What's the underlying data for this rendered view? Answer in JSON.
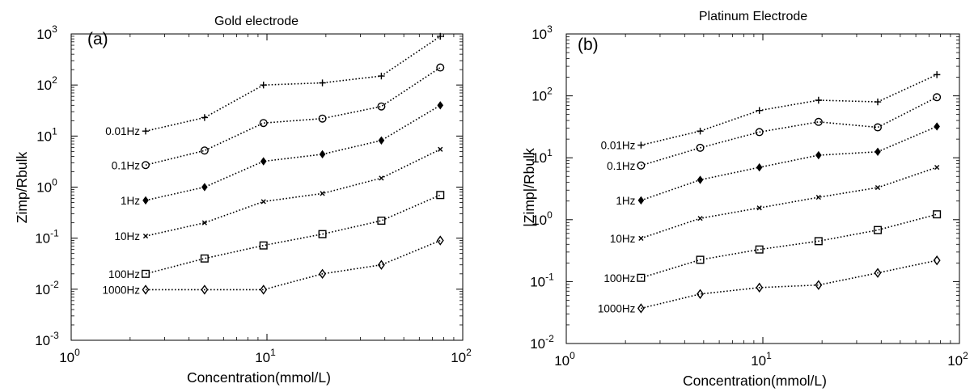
{
  "chart_data": [
    {
      "type": "line",
      "panel_label": "(a)",
      "title": "Gold electrode",
      "xlabel": "Concentration(mmol/L)",
      "ylabel": "Zimp/Rbulk",
      "xscale": "log",
      "yscale": "log",
      "xlim": [
        1,
        100
      ],
      "ylim": [
        0.001,
        1000
      ],
      "x_ticks": [
        {
          "value": 1,
          "base": "10",
          "exp": "0"
        },
        {
          "value": 10,
          "base": "10",
          "exp": "1"
        },
        {
          "value": 100,
          "base": "10",
          "exp": "2"
        }
      ],
      "y_ticks": [
        {
          "value": 0.001,
          "base": "10",
          "exp": "-3"
        },
        {
          "value": 0.01,
          "base": "10",
          "exp": "-2"
        },
        {
          "value": 0.1,
          "base": "10",
          "exp": "-1"
        },
        {
          "value": 1,
          "base": "10",
          "exp": "0"
        },
        {
          "value": 10,
          "base": "10",
          "exp": "1"
        },
        {
          "value": 100,
          "base": "10",
          "exp": "2"
        },
        {
          "value": 1000,
          "base": "10",
          "exp": "3"
        }
      ],
      "grid": false,
      "legend": "inline labels at left of each series",
      "x": [
        2.4,
        4.8,
        9.6,
        19.2,
        38.4,
        76.8
      ],
      "series": [
        {
          "name": "0.01Hz",
          "marker": "plus",
          "values": [
            12.5,
            23,
            100,
            110,
            150,
            900
          ]
        },
        {
          "name": "0.1Hz",
          "marker": "circle",
          "values": [
            2.7,
            5.2,
            18,
            22,
            38,
            220
          ]
        },
        {
          "name": "1Hz",
          "marker": "filled-diamond",
          "values": [
            0.55,
            1.0,
            3.2,
            4.4,
            8.2,
            40
          ]
        },
        {
          "name": "10Hz",
          "marker": "x",
          "values": [
            0.11,
            0.2,
            0.52,
            0.75,
            1.5,
            5.5
          ]
        },
        {
          "name": "100Hz",
          "marker": "square",
          "values": [
            0.02,
            0.04,
            0.072,
            0.12,
            0.22,
            0.7
          ]
        },
        {
          "name": "1000Hz",
          "marker": "diamond",
          "values": [
            0.0098,
            0.0098,
            0.0098,
            0.02,
            0.03,
            0.09
          ]
        }
      ]
    },
    {
      "type": "line",
      "panel_label": "(b)",
      "title": "Platinum Electrode",
      "xlabel": "Concentration(mmol/L)",
      "ylabel": "|Zimp|/Rbulk",
      "xscale": "log",
      "yscale": "log",
      "xlim": [
        1,
        100
      ],
      "ylim": [
        0.01,
        1000
      ],
      "x_ticks": [
        {
          "value": 1,
          "base": "10",
          "exp": "0"
        },
        {
          "value": 10,
          "base": "10",
          "exp": "1"
        },
        {
          "value": 100,
          "base": "10",
          "exp": "2"
        }
      ],
      "y_ticks": [
        {
          "value": 0.01,
          "base": "10",
          "exp": "-2"
        },
        {
          "value": 0.1,
          "base": "10",
          "exp": "-1"
        },
        {
          "value": 1,
          "base": "10",
          "exp": "0"
        },
        {
          "value": 10,
          "base": "10",
          "exp": "1"
        },
        {
          "value": 100,
          "base": "10",
          "exp": "2"
        },
        {
          "value": 1000,
          "base": "10",
          "exp": "3"
        }
      ],
      "grid": false,
      "legend": "inline labels at left of each series",
      "x": [
        2.4,
        4.8,
        9.6,
        19.2,
        38.4,
        76.8
      ],
      "series": [
        {
          "name": "0.01Hz",
          "marker": "plus",
          "values": [
            16,
            27,
            58,
            85,
            80,
            220
          ]
        },
        {
          "name": "0.1Hz",
          "marker": "circle",
          "values": [
            7.5,
            14.5,
            26,
            38,
            31,
            95
          ]
        },
        {
          "name": "1Hz",
          "marker": "filled-diamond",
          "values": [
            2.05,
            4.4,
            7.0,
            11,
            12.5,
            32
          ]
        },
        {
          "name": "10Hz",
          "marker": "x",
          "values": [
            0.5,
            1.05,
            1.55,
            2.3,
            3.3,
            7.0
          ]
        },
        {
          "name": "100Hz",
          "marker": "square",
          "values": [
            0.115,
            0.225,
            0.33,
            0.45,
            0.68,
            1.22
          ]
        },
        {
          "name": "1000Hz",
          "marker": "diamond",
          "values": [
            0.037,
            0.063,
            0.08,
            0.088,
            0.138,
            0.22
          ]
        }
      ]
    }
  ]
}
